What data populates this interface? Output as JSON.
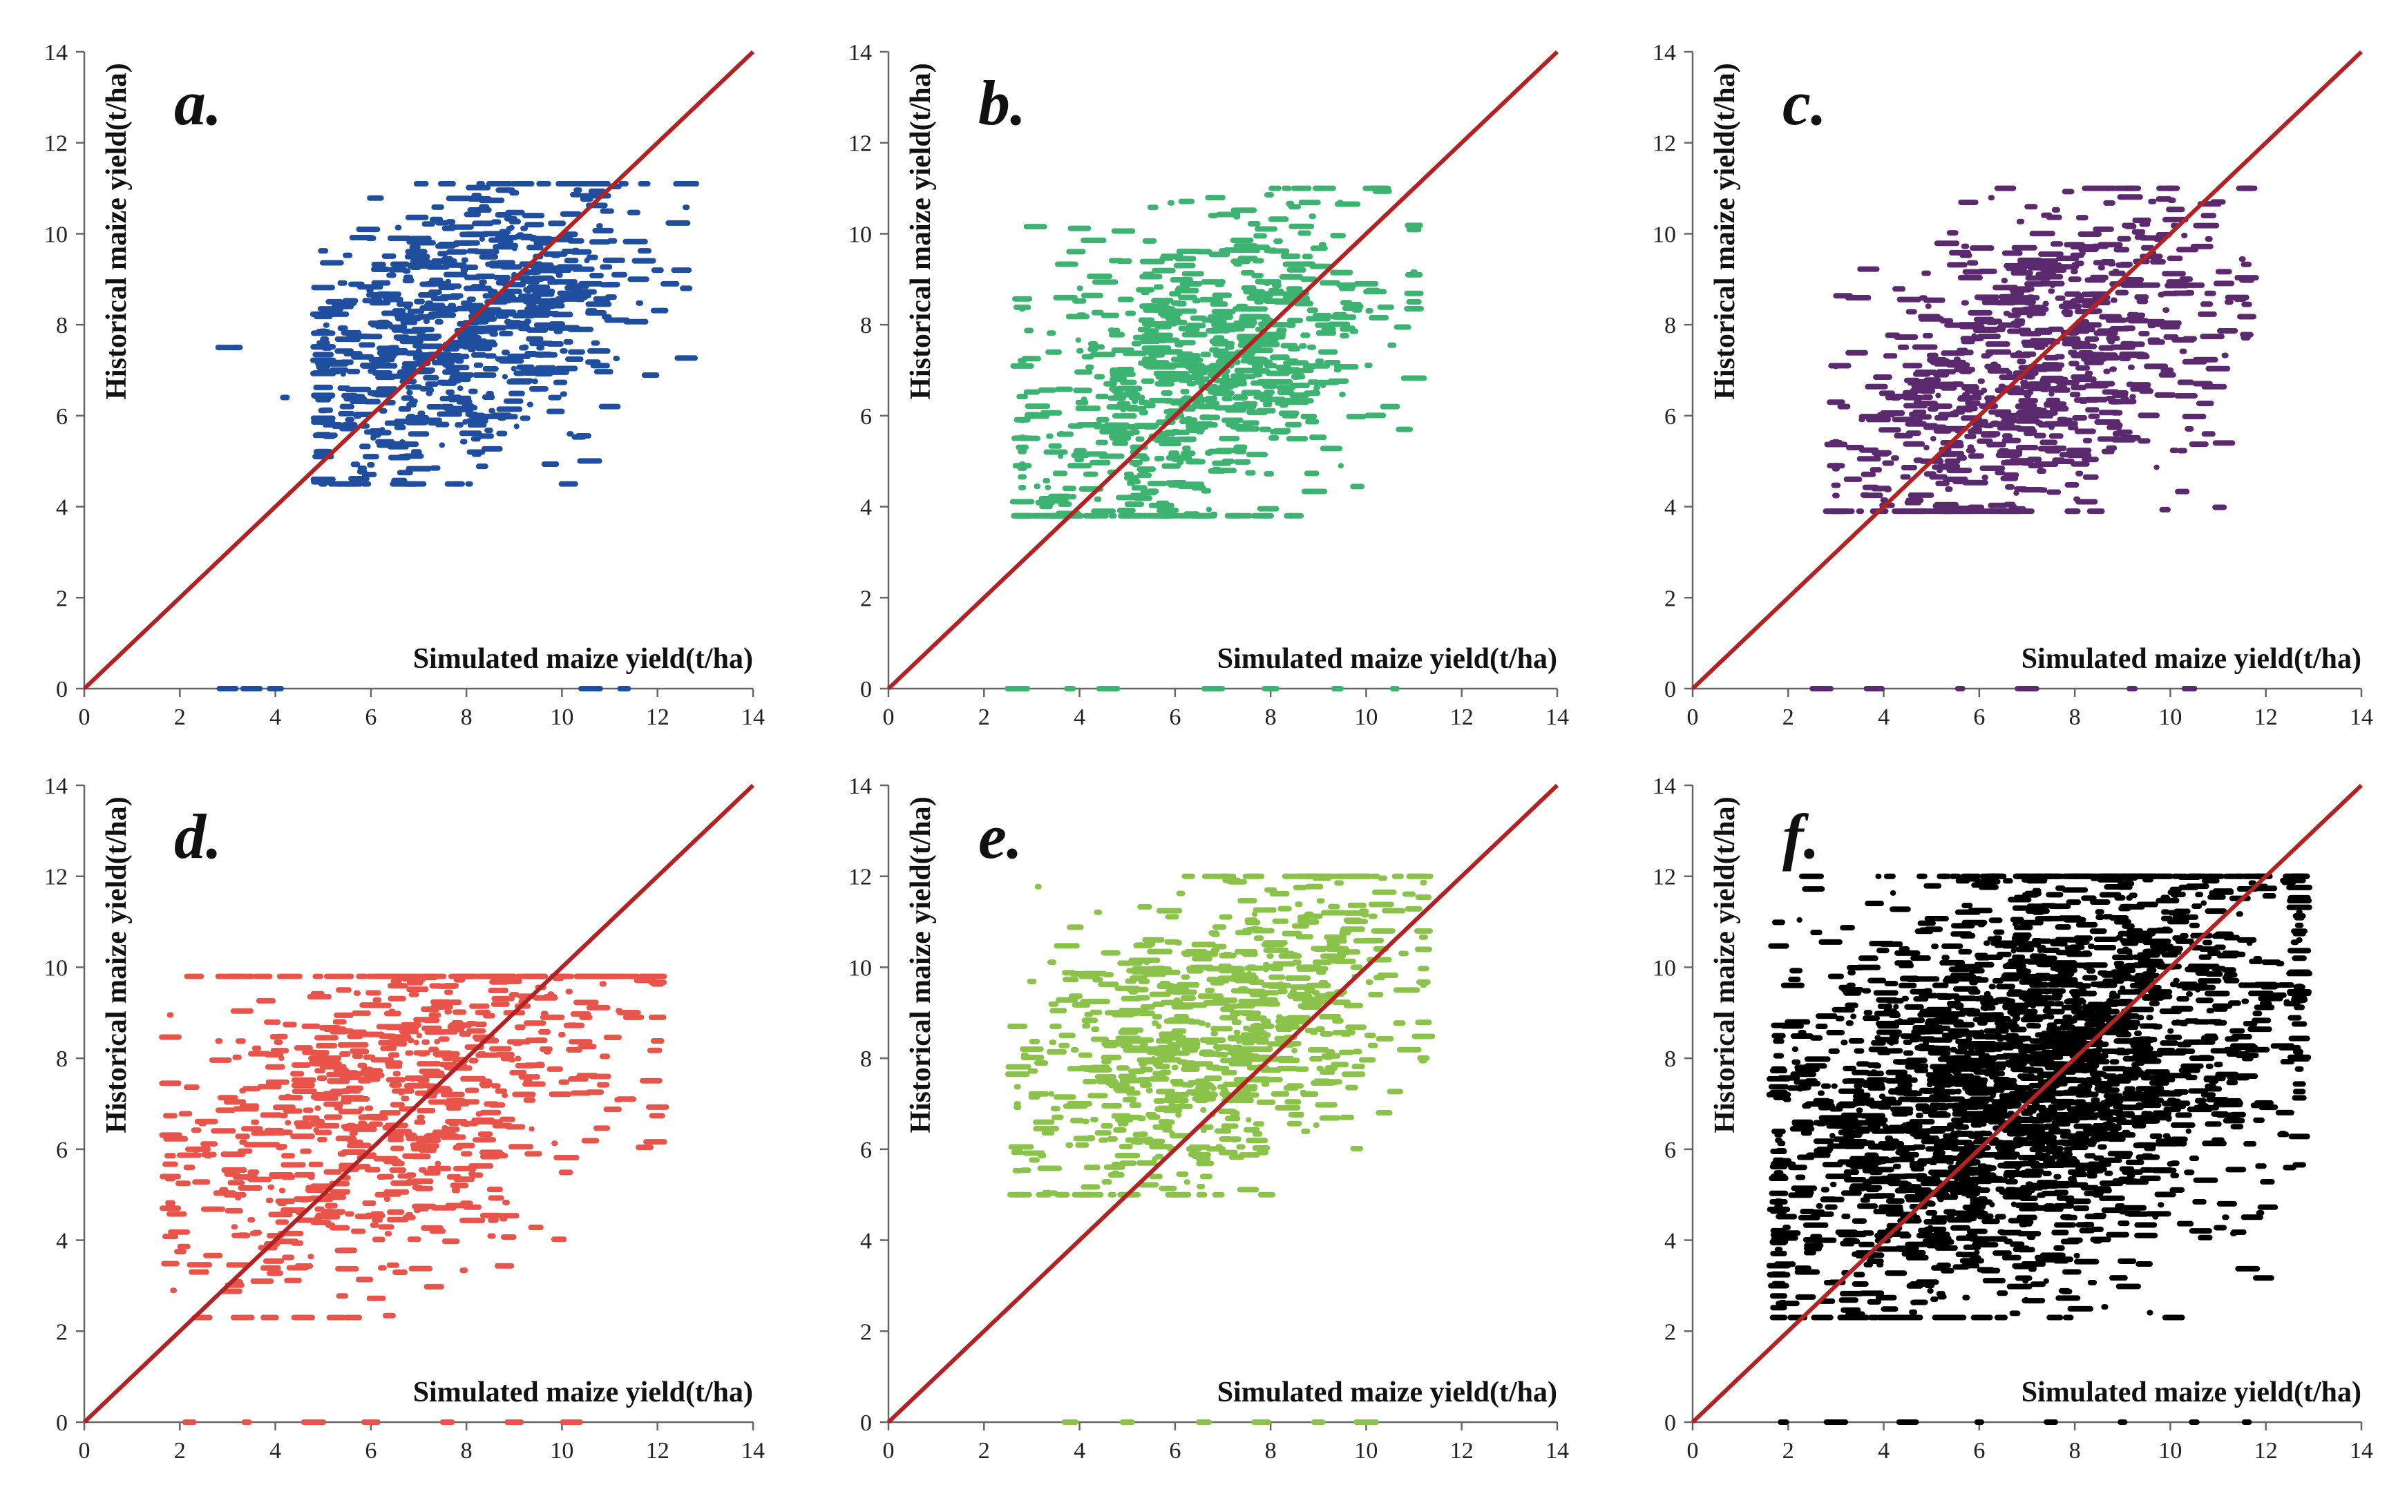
{
  "figure": {
    "axis_titles": {
      "x": "Simulated maize yield(t/ha)",
      "y": "Historical maize yield(t/ha)"
    },
    "ticks": [
      "0",
      "2",
      "4",
      "6",
      "8",
      "10",
      "12",
      "14"
    ],
    "colors": {
      "identity_line": "#b22222",
      "axis": "#666666"
    }
  },
  "chart_data": [
    {
      "type": "scatter",
      "panel_label": "a.",
      "color": "#1f4e9e",
      "title": "",
      "xlabel": "Simulated maize yield(t/ha)",
      "ylabel": "Historical maize yield(t/ha)",
      "xlim": [
        0,
        14
      ],
      "ylim": [
        0,
        14
      ],
      "xticks": [
        0,
        2,
        4,
        6,
        8,
        10,
        12,
        14
      ],
      "yticks": [
        0,
        2,
        4,
        6,
        8,
        10,
        12,
        14
      ],
      "reference_line": {
        "type": "1:1",
        "from": [
          0,
          0
        ],
        "to": [
          14,
          14
        ]
      },
      "cluster": {
        "x_range": [
          5.0,
          12.6
        ],
        "y_range": [
          4.5,
          11.1
        ],
        "center": [
          8.0,
          8.0
        ]
      },
      "points": [
        [
          3.0,
          7.5
        ],
        [
          3.2,
          7.5
        ],
        [
          4.2,
          6.4
        ],
        [
          5.0,
          4.6
        ],
        [
          5.2,
          5.8
        ],
        [
          5.5,
          6.2
        ],
        [
          5.6,
          7.8
        ],
        [
          6.0,
          5.1
        ],
        [
          6.2,
          6.5
        ],
        [
          6.4,
          8.6
        ],
        [
          6.6,
          9.9
        ],
        [
          6.8,
          4.5
        ],
        [
          7.0,
          5.6
        ],
        [
          7.2,
          7.0
        ],
        [
          7.4,
          8.9
        ],
        [
          7.6,
          6.2
        ],
        [
          7.8,
          9.6
        ],
        [
          8.0,
          7.9
        ],
        [
          8.2,
          5.2
        ],
        [
          8.4,
          8.8
        ],
        [
          8.6,
          10.0
        ],
        [
          8.8,
          9.3
        ],
        [
          9.0,
          10.9
        ],
        [
          9.2,
          8.2
        ],
        [
          9.4,
          10.4
        ],
        [
          9.6,
          9.8
        ],
        [
          9.8,
          7.0
        ],
        [
          10.0,
          9.2
        ],
        [
          10.2,
          11.1
        ],
        [
          10.4,
          9.6
        ],
        [
          10.6,
          8.9
        ],
        [
          10.8,
          7.1
        ],
        [
          11.0,
          6.2
        ],
        [
          11.2,
          9.1
        ],
        [
          11.6,
          9.0
        ],
        [
          12.0,
          9.2
        ],
        [
          12.5,
          9.2
        ],
        [
          3.0,
          0.0
        ],
        [
          3.5,
          0.0
        ],
        [
          4.0,
          0.0
        ],
        [
          10.6,
          0.0
        ],
        [
          11.3,
          0.0
        ]
      ]
    },
    {
      "type": "scatter",
      "panel_label": "b.",
      "color": "#3cb371",
      "title": "",
      "xlabel": "Simulated maize yield(t/ha)",
      "ylabel": "Historical maize yield(t/ha)",
      "xlim": [
        0,
        14
      ],
      "ylim": [
        0,
        14
      ],
      "xticks": [
        0,
        2,
        4,
        6,
        8,
        10,
        12,
        14
      ],
      "yticks": [
        0,
        2,
        4,
        6,
        8,
        10,
        12,
        14
      ],
      "reference_line": {
        "type": "1:1",
        "from": [
          0,
          0
        ],
        "to": [
          14,
          14
        ]
      },
      "cluster": {
        "x_range": [
          2.8,
          11.0
        ],
        "y_range": [
          3.8,
          11.0
        ],
        "center": [
          6.5,
          6.8
        ]
      },
      "points": [
        [
          2.8,
          4.9
        ],
        [
          3.5,
          5.2
        ],
        [
          4.0,
          4.9
        ],
        [
          4.2,
          5.8
        ],
        [
          4.5,
          3.9
        ],
        [
          4.8,
          7.0
        ],
        [
          5.0,
          4.2
        ],
        [
          5.2,
          6.4
        ],
        [
          5.4,
          8.1
        ],
        [
          5.6,
          5.5
        ],
        [
          5.8,
          7.4
        ],
        [
          6.0,
          6.1
        ],
        [
          6.2,
          9.3
        ],
        [
          6.4,
          5.0
        ],
        [
          6.6,
          6.8
        ],
        [
          6.8,
          10.4
        ],
        [
          7.0,
          7.6
        ],
        [
          7.2,
          5.9
        ],
        [
          7.4,
          8.4
        ],
        [
          7.6,
          6.5
        ],
        [
          7.8,
          9.7
        ],
        [
          8.0,
          7.1
        ],
        [
          8.2,
          8.0
        ],
        [
          8.4,
          6.0
        ],
        [
          8.6,
          8.7
        ],
        [
          8.8,
          9.0
        ],
        [
          9.0,
          11.0
        ],
        [
          9.2,
          7.4
        ],
        [
          9.6,
          8.8
        ],
        [
          10.0,
          8.9
        ],
        [
          10.5,
          6.2
        ],
        [
          10.8,
          5.7
        ],
        [
          2.7,
          0.0
        ],
        [
          3.8,
          0.0
        ],
        [
          4.6,
          0.0
        ],
        [
          6.8,
          0.0
        ],
        [
          8.0,
          0.0
        ],
        [
          9.4,
          0.0
        ],
        [
          10.6,
          0.0
        ]
      ]
    },
    {
      "type": "scatter",
      "panel_label": "c.",
      "color": "#5b2a6e",
      "title": "",
      "xlabel": "Simulated maize yield(t/ha)",
      "ylabel": "Historical maize yield(t/ha)",
      "xlim": [
        0,
        14
      ],
      "ylim": [
        0,
        14
      ],
      "xticks": [
        0,
        2,
        4,
        6,
        8,
        10,
        12,
        14
      ],
      "yticks": [
        0,
        2,
        4,
        6,
        8,
        10,
        12,
        14
      ],
      "reference_line": {
        "type": "1:1",
        "from": [
          0,
          0
        ],
        "to": [
          14,
          14
        ]
      },
      "cluster": {
        "x_range": [
          3.0,
          11.6
        ],
        "y_range": [
          3.9,
          11.0
        ],
        "center": [
          7.0,
          7.0
        ]
      },
      "points": [
        [
          3.0,
          4.9
        ],
        [
          3.4,
          5.3
        ],
        [
          4.0,
          4.4
        ],
        [
          4.2,
          6.4
        ],
        [
          4.6,
          7.1
        ],
        [
          5.0,
          5.0
        ],
        [
          5.2,
          6.9
        ],
        [
          5.5,
          4.6
        ],
        [
          5.8,
          8.0
        ],
        [
          6.0,
          5.8
        ],
        [
          6.2,
          3.9
        ],
        [
          6.4,
          7.4
        ],
        [
          6.6,
          6.0
        ],
        [
          6.8,
          8.7
        ],
        [
          7.0,
          5.3
        ],
        [
          7.2,
          6.6
        ],
        [
          7.4,
          9.4
        ],
        [
          7.6,
          7.9
        ],
        [
          7.8,
          5.9
        ],
        [
          8.0,
          9.0
        ],
        [
          8.2,
          6.8
        ],
        [
          8.4,
          8.3
        ],
        [
          8.6,
          10.1
        ],
        [
          8.8,
          7.7
        ],
        [
          9.0,
          6.5
        ],
        [
          9.2,
          8.9
        ],
        [
          9.6,
          9.5
        ],
        [
          10.0,
          11.0
        ],
        [
          10.4,
          8.7
        ],
        [
          10.8,
          10.4
        ],
        [
          11.0,
          10.7
        ],
        [
          11.4,
          8.6
        ],
        [
          10.8,
          5.6
        ],
        [
          2.7,
          0.0
        ],
        [
          3.8,
          0.0
        ],
        [
          5.6,
          0.0
        ],
        [
          7.0,
          0.0
        ],
        [
          9.2,
          0.0
        ],
        [
          10.4,
          0.0
        ]
      ]
    },
    {
      "type": "scatter",
      "panel_label": "d.",
      "color": "#e8534a",
      "title": "",
      "xlabel": "Simulated maize yield(t/ha)",
      "ylabel": "Historical maize yield(t/ha)",
      "xlim": [
        0,
        14
      ],
      "ylim": [
        0,
        14
      ],
      "xticks": [
        0,
        2,
        4,
        6,
        8,
        10,
        12,
        14
      ],
      "yticks": [
        0,
        2,
        4,
        6,
        8,
        10,
        12,
        14
      ],
      "reference_line": {
        "type": "1:1",
        "from": [
          0,
          0
        ],
        "to": [
          14,
          14
        ]
      },
      "cluster": {
        "x_range": [
          1.8,
          12.0
        ],
        "y_range": [
          2.3,
          9.8
        ],
        "center": [
          6.5,
          7.0
        ]
      },
      "points": [
        [
          1.8,
          5.4
        ],
        [
          2.2,
          5.6
        ],
        [
          2.4,
          3.3
        ],
        [
          3.2,
          2.3
        ],
        [
          3.0,
          9.8
        ],
        [
          4.0,
          4.1
        ],
        [
          4.3,
          9.8
        ],
        [
          4.6,
          6.5
        ],
        [
          4.8,
          8.0
        ],
        [
          5.0,
          7.2
        ],
        [
          5.2,
          5.5
        ],
        [
          5.4,
          8.6
        ],
        [
          5.6,
          6.2
        ],
        [
          5.8,
          9.8
        ],
        [
          6.0,
          7.7
        ],
        [
          6.2,
          5.0
        ],
        [
          6.4,
          6.8
        ],
        [
          6.6,
          8.4
        ],
        [
          6.8,
          4.5
        ],
        [
          7.0,
          7.4
        ],
        [
          7.2,
          9.8
        ],
        [
          7.4,
          6.3
        ],
        [
          7.6,
          8.0
        ],
        [
          7.8,
          7.0
        ],
        [
          8.0,
          5.9
        ],
        [
          8.2,
          8.6
        ],
        [
          8.4,
          7.4
        ],
        [
          8.6,
          6.6
        ],
        [
          9.0,
          9.0
        ],
        [
          9.4,
          5.9
        ],
        [
          9.8,
          8.9
        ],
        [
          10.5,
          8.9
        ],
        [
          10.8,
          7.6
        ],
        [
          11.5,
          8.9
        ],
        [
          12.0,
          8.9
        ],
        [
          2.2,
          0.0
        ],
        [
          3.4,
          0.0
        ],
        [
          4.8,
          0.0
        ],
        [
          6.0,
          0.0
        ],
        [
          7.6,
          0.0
        ],
        [
          9.0,
          0.0
        ],
        [
          10.2,
          0.0
        ]
      ]
    },
    {
      "type": "scatter",
      "panel_label": "e.",
      "color": "#8bc34a",
      "title": "",
      "xlabel": "Simulated maize yield(t/ha)",
      "ylabel": "Historical maize yield(t/ha)",
      "xlim": [
        0,
        14
      ],
      "ylim": [
        0,
        14
      ],
      "xticks": [
        0,
        2,
        4,
        6,
        8,
        10,
        12,
        14
      ],
      "yticks": [
        0,
        2,
        4,
        6,
        8,
        10,
        12,
        14
      ],
      "reference_line": {
        "type": "1:1",
        "from": [
          0,
          0
        ],
        "to": [
          14,
          14
        ]
      },
      "cluster": {
        "x_range": [
          2.7,
          11.2
        ],
        "y_range": [
          5.0,
          12.0
        ],
        "center": [
          6.8,
          8.5
        ]
      },
      "points": [
        [
          2.7,
          8.7
        ],
        [
          3.0,
          8.2
        ],
        [
          3.5,
          8.7
        ],
        [
          4.0,
          7.0
        ],
        [
          4.2,
          9.8
        ],
        [
          4.5,
          6.2
        ],
        [
          4.8,
          9.0
        ],
        [
          5.0,
          7.6
        ],
        [
          5.2,
          6.2
        ],
        [
          5.4,
          8.4
        ],
        [
          5.6,
          5.4
        ],
        [
          5.8,
          9.6
        ],
        [
          6.0,
          7.2
        ],
        [
          6.2,
          5.0
        ],
        [
          6.4,
          8.8
        ],
        [
          6.6,
          10.5
        ],
        [
          6.8,
          7.8
        ],
        [
          7.0,
          6.4
        ],
        [
          7.2,
          11.9
        ],
        [
          7.4,
          9.0
        ],
        [
          7.6,
          10.0
        ],
        [
          7.8,
          8.2
        ],
        [
          8.0,
          11.7
        ],
        [
          8.2,
          9.6
        ],
        [
          8.4,
          10.3
        ],
        [
          8.6,
          9.4
        ],
        [
          8.8,
          10.0
        ],
        [
          9.0,
          9.6
        ],
        [
          9.4,
          10.4
        ],
        [
          9.8,
          10.0
        ],
        [
          10.2,
          9.4
        ],
        [
          10.8,
          9.5
        ],
        [
          11.0,
          9.5
        ],
        [
          9.6,
          6.7
        ],
        [
          3.8,
          0.0
        ],
        [
          5.0,
          0.0
        ],
        [
          6.6,
          0.0
        ],
        [
          7.8,
          0.0
        ],
        [
          9.0,
          0.0
        ],
        [
          10.0,
          0.0
        ]
      ]
    },
    {
      "type": "scatter",
      "panel_label": "f.",
      "color": "#000000",
      "title": "",
      "xlabel": "Simulated maize yield(t/ha)",
      "ylabel": "Historical maize yield(t/ha)",
      "xlim": [
        0,
        14
      ],
      "ylim": [
        0,
        14
      ],
      "xticks": [
        0,
        2,
        4,
        6,
        8,
        10,
        12,
        14
      ],
      "yticks": [
        0,
        2,
        4,
        6,
        8,
        10,
        12,
        14
      ],
      "reference_line": {
        "type": "1:1",
        "from": [
          0,
          0
        ],
        "to": [
          14,
          14
        ]
      },
      "cluster": {
        "x_range": [
          1.8,
          12.7
        ],
        "y_range": [
          2.3,
          12.0
        ],
        "center": [
          7.0,
          7.5
        ]
      },
      "points": [
        [
          1.8,
          5.4
        ],
        [
          2.2,
          5.6
        ],
        [
          2.4,
          3.3
        ],
        [
          3.2,
          2.3
        ],
        [
          2.7,
          8.7
        ],
        [
          3.0,
          9.8
        ],
        [
          3.4,
          7.5
        ],
        [
          4.0,
          4.1
        ],
        [
          4.2,
          6.4
        ],
        [
          4.5,
          9.6
        ],
        [
          5.0,
          4.6
        ],
        [
          5.4,
          8.8
        ],
        [
          6.2,
          3.9
        ],
        [
          6.6,
          11.9
        ],
        [
          7.2,
          11.9
        ],
        [
          8.0,
          11.7
        ],
        [
          9.0,
          11.0
        ],
        [
          10.2,
          11.1
        ],
        [
          11.4,
          8.6
        ],
        [
          12.0,
          9.2
        ],
        [
          12.5,
          9.2
        ],
        [
          11.0,
          6.2
        ],
        [
          10.5,
          5.8
        ],
        [
          8.0,
          4.0
        ],
        [
          5.6,
          10.0
        ],
        [
          6.0,
          5.1
        ],
        [
          7.0,
          4.5
        ],
        [
          9.6,
          6.7
        ],
        [
          10.8,
          10.4
        ],
        [
          11.6,
          10.6
        ],
        [
          1.9,
          0.0
        ],
        [
          3.0,
          0.0
        ],
        [
          4.5,
          0.0
        ],
        [
          6.0,
          0.0
        ],
        [
          7.5,
          0.0
        ],
        [
          9.0,
          0.0
        ],
        [
          10.5,
          0.0
        ],
        [
          11.6,
          0.0
        ]
      ]
    }
  ]
}
